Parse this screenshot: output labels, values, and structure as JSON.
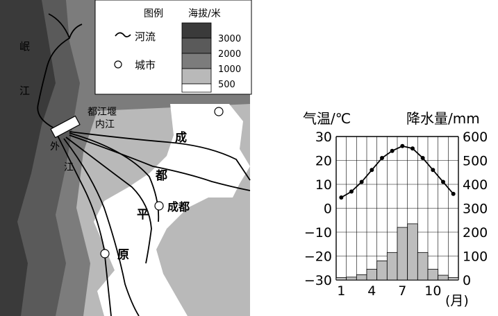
{
  "map": {
    "legend": {
      "title": "图例",
      "river_label": "河流",
      "city_label": "城市",
      "elevation_title": "海拔/米",
      "elevation_levels": [
        "3000",
        "2000",
        "1000",
        "500"
      ]
    },
    "labels": {
      "minjiang_1": "岷",
      "minjiang_2": "江",
      "weir": "都江堰",
      "neijiang": "内江",
      "waijiang_1": "外",
      "waijiang_2": "江",
      "plain_1": "成",
      "plain_2": "都",
      "plain_3": "平",
      "plain_4": "原",
      "city": "成都"
    },
    "colors": {
      "high": "#3a3a3a",
      "upper": "#5a5a5a",
      "mid": "#7c7c7c",
      "low": "#b9b9b9",
      "plain": "#ffffff"
    }
  },
  "chart_data": {
    "type": "bar+line",
    "left_axis_label": "气温/℃",
    "right_axis_label": "降水量/mm",
    "x_unit": "(月)",
    "x_tick_labels": [
      "1",
      "4",
      "7",
      "10"
    ],
    "left_ticks": [
      "30",
      "20",
      "10",
      "0",
      "−10",
      "−20",
      "−30"
    ],
    "right_ticks": [
      "600",
      "500",
      "400",
      "300",
      "200",
      "100",
      "0"
    ],
    "ylim_temperature": [
      -30,
      30
    ],
    "ylim_precipitation": [
      0,
      600
    ],
    "months": [
      1,
      2,
      3,
      4,
      5,
      6,
      7,
      8,
      9,
      10,
      11,
      12
    ],
    "temperature": [
      4.5,
      7,
      11,
      16,
      21,
      24,
      26,
      25,
      21,
      16,
      11,
      6
    ],
    "precipitation": [
      10,
      12,
      22,
      45,
      80,
      115,
      220,
      235,
      115,
      45,
      20,
      10
    ],
    "grid": true
  }
}
